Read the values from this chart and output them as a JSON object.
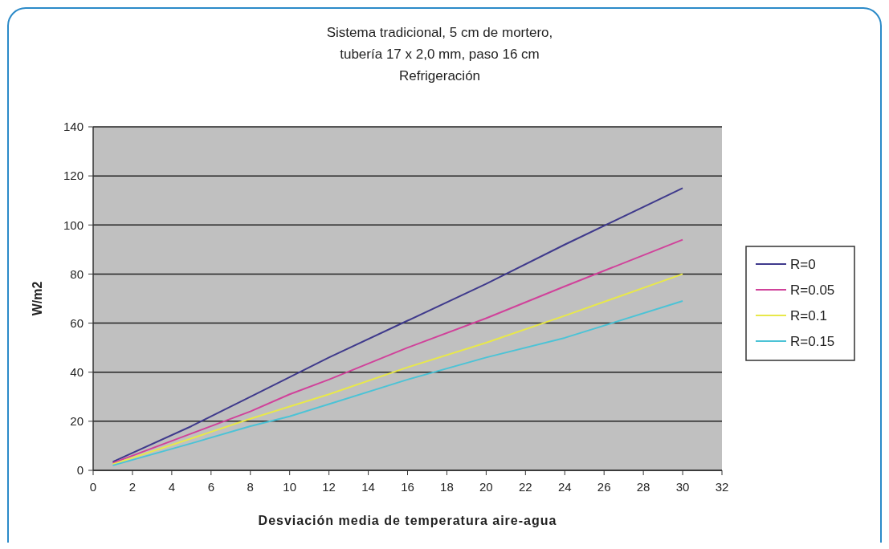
{
  "chart_data": {
    "type": "line",
    "title": "Sistema tradicional, 5 cm de mortero,\ntubería 17 x 2,0 mm, paso 16 cm\nRefrigeración",
    "xlabel": "Desviación media de temperatura aire-agua",
    "ylabel": "W/m2",
    "x": [
      1,
      5,
      8,
      10,
      12,
      16,
      20,
      24,
      30
    ],
    "series": [
      {
        "name": "R=0",
        "color": "#3f3a8c",
        "values": [
          3.5,
          18,
          30,
          38,
          46,
          61,
          76,
          92,
          115
        ]
      },
      {
        "name": "R=0.05",
        "color": "#d0429a",
        "values": [
          3,
          15,
          24,
          31,
          37,
          50,
          62,
          75,
          94
        ]
      },
      {
        "name": "R=0.1",
        "color": "#e8e84a",
        "values": [
          2.5,
          13,
          21,
          26,
          31,
          42,
          52,
          63,
          80
        ]
      },
      {
        "name": "R=0.15",
        "color": "#4cc3d6",
        "values": [
          2,
          11,
          18,
          22,
          27,
          37,
          46,
          54,
          69
        ]
      }
    ],
    "xlim": [
      0,
      32
    ],
    "xticks": [
      0,
      2,
      4,
      6,
      8,
      10,
      12,
      14,
      16,
      18,
      20,
      22,
      24,
      26,
      28,
      30,
      32
    ],
    "ylim": [
      0,
      140
    ],
    "yticks": [
      0,
      20,
      40,
      60,
      80,
      100,
      120,
      140
    ],
    "grid": "y",
    "legend": "right",
    "marker": "none",
    "line_style": "solid"
  }
}
